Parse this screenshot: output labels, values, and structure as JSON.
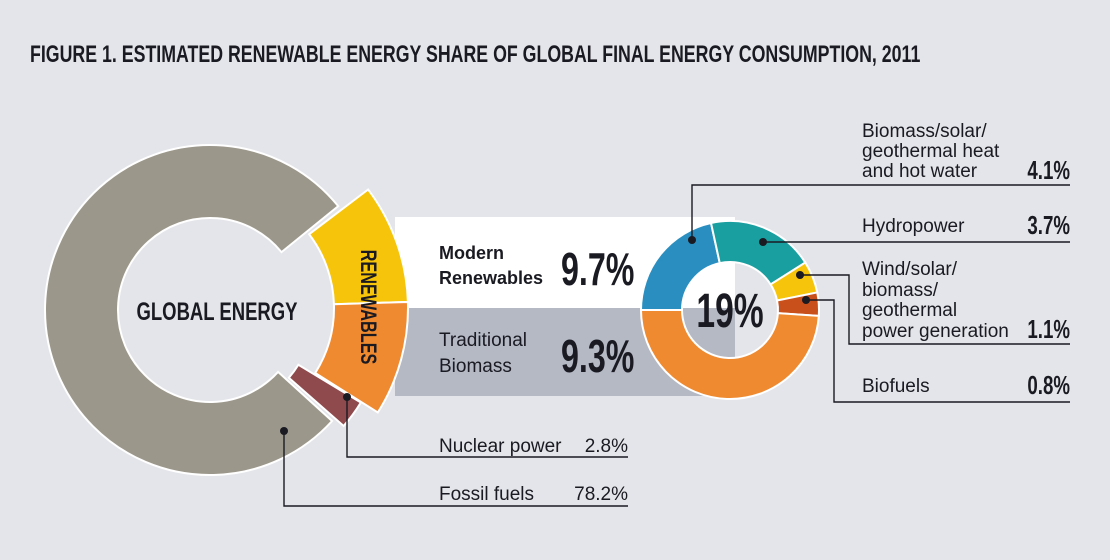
{
  "chart_data": {
    "type": "pie",
    "title": "FIGURE 1. ESTIMATED RENEWABLE ENERGY SHARE OF GLOBAL FINAL ENERGY CONSUMPTION, 2011",
    "main": {
      "center_label": "GLOBAL ENERGY",
      "renewables_label": "RENEWABLES",
      "slices": [
        {
          "name": "Fossil fuels",
          "value": 78.2,
          "label": "78.2%",
          "color": "#9c978b"
        },
        {
          "name": "Nuclear power",
          "value": 2.8,
          "label": "2.8%",
          "color": "#8f4a4d"
        },
        {
          "name": "Renewables",
          "value": 19.0,
          "label": "19%",
          "color": "#f6c40a"
        }
      ]
    },
    "renewables_split": [
      {
        "name_line1": "Modern",
        "name_line2": "Renewables",
        "value": 9.7,
        "label": "9.7%",
        "color": "#f6c40a"
      },
      {
        "name_line1": "Traditional",
        "name_line2": "Biomass",
        "value": 9.3,
        "label": "9.3%",
        "color": "#ef8a30"
      }
    ],
    "breakdown": {
      "center_label": "19%",
      "total": 19,
      "slices": [
        {
          "name_lines": [
            "Biomass/solar/",
            "geothermal heat",
            "and hot water"
          ],
          "value": 4.1,
          "label": "4.1%",
          "color": "#2a8fc0"
        },
        {
          "name_lines": [
            "Hydropower"
          ],
          "value": 3.7,
          "label": "3.7%",
          "color": "#1a9fa0"
        },
        {
          "name_lines": [
            "Wind/solar/",
            "biomass/",
            "geothermal",
            "power generation"
          ],
          "value": 1.1,
          "label": "1.1%",
          "color": "#f6c40a"
        },
        {
          "name_lines": [
            "Biofuels"
          ],
          "value": 0.8,
          "label": "0.8%",
          "color": "#c9501a"
        },
        {
          "name_lines": [
            "Traditional Biomass"
          ],
          "value": 9.3,
          "label": "",
          "color": "#ef8a30"
        }
      ]
    }
  }
}
